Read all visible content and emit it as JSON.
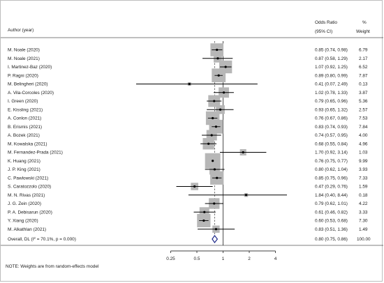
{
  "header": {
    "author_label": "Author (year)",
    "or_label": "Odds Ratio",
    "ci_label": "(95% CI)",
    "pct_label": "%",
    "weight_label": "Weight"
  },
  "note": "NOTE: Weights are from random-effects model",
  "chart_data": {
    "type": "forest",
    "x_scale": "log",
    "x_ticks": [
      "0.25",
      "0.5",
      "1",
      "2",
      "4"
    ],
    "null_line": 1,
    "pooled_line": 0.8,
    "studies": [
      {
        "label": "M. Noale (2020)",
        "or": 0.85,
        "lo": 0.74,
        "hi": 0.98,
        "ci_text": "0.85 (0.74, 0.98)",
        "weight": "6.79"
      },
      {
        "label": "M. Noale (2021)",
        "or": 0.87,
        "lo": 0.58,
        "hi": 1.29,
        "ci_text": "0.87 (0.58, 1.29)",
        "weight": "2.17"
      },
      {
        "label": "I. Martinez-Baz (2020)",
        "or": 1.07,
        "lo": 0.92,
        "hi": 1.25,
        "ci_text": "1.07 (0.92, 1.25)",
        "weight": "6.52"
      },
      {
        "label": "P. Ragni (2020)",
        "or": 0.89,
        "lo": 0.8,
        "hi": 0.99,
        "ci_text": "0.89 (0.80, 0.99)",
        "weight": "7.87"
      },
      {
        "label": "M. Belingheri (2020)",
        "or": 0.41,
        "lo": 0.07,
        "hi": 2.49,
        "ci_text": "0.41 (0.07, 2.49)",
        "weight": "0.13"
      },
      {
        "label": "A. Vila-Corcoles (2020)",
        "or": 1.02,
        "lo": 0.78,
        "hi": 1.33,
        "ci_text": "1.02 (0.78, 1.33)",
        "weight": "3.87"
      },
      {
        "label": "I. Green (2020)",
        "or": 0.79,
        "lo": 0.65,
        "hi": 0.96,
        "ci_text": "0.79 (0.65, 0.96)",
        "weight": "5.36"
      },
      {
        "label": "E. Kissling (2021)",
        "or": 0.93,
        "lo": 0.65,
        "hi": 1.32,
        "ci_text": "0.93 (0.65, 1.32)",
        "weight": "2.57"
      },
      {
        "label": "A. Conlon (2021)",
        "or": 0.76,
        "lo": 0.67,
        "hi": 0.86,
        "ci_text": "0.76 (0.67, 0.86)",
        "weight": "7.53"
      },
      {
        "label": "B. Erismis (2021)",
        "or": 0.83,
        "lo": 0.74,
        "hi": 0.93,
        "ci_text": "0.83 (0.74, 0.93)",
        "weight": "7.84"
      },
      {
        "label": "A. Bozek (2021)",
        "or": 0.74,
        "lo": 0.57,
        "hi": 0.95,
        "ci_text": "0.74 (0.57, 0.95)",
        "weight": "4.00"
      },
      {
        "label": "M. Kowalska (2021)",
        "or": 0.68,
        "lo": 0.55,
        "hi": 0.84,
        "ci_text": "0.68 (0.55, 0.84)",
        "weight": "4.96"
      },
      {
        "label": "M. Fernandez-Prada (2021)",
        "or": 1.7,
        "lo": 0.92,
        "hi": 3.14,
        "ci_text": "1.70 (0.92, 3.14)",
        "weight": "1.03"
      },
      {
        "label": "K. Huang (2021)",
        "or": 0.76,
        "lo": 0.75,
        "hi": 0.77,
        "ci_text": "0.76 (0.75, 0.77)",
        "weight": "9.99"
      },
      {
        "label": "J. P. King (2021)",
        "or": 0.8,
        "lo": 0.62,
        "hi": 1.04,
        "ci_text": "0.80 (0.62, 1.04)",
        "weight": "3.93"
      },
      {
        "label": "C. Pawlowski (2021)",
        "or": 0.85,
        "lo": 0.75,
        "hi": 0.96,
        "ci_text": "0.85 (0.75, 0.96)",
        "weight": "7.33"
      },
      {
        "label": "S. Caratozzolo (2020)",
        "or": 0.47,
        "lo": 0.29,
        "hi": 0.76,
        "ci_text": "0.47 (0.29, 0.76)",
        "weight": "1.59"
      },
      {
        "label": "M. N. Rivas (2021)",
        "or": 1.84,
        "lo": 0.4,
        "hi": 8.44,
        "ci_text": "1.84 (0.40, 8.44)",
        "weight": "0.18"
      },
      {
        "label": "J. G. Zein (2020)",
        "or": 0.79,
        "lo": 0.62,
        "hi": 1.01,
        "ci_text": "0.79 (0.62, 1.01)",
        "weight": "4.22"
      },
      {
        "label": "P. A. Debisarun (2020)",
        "or": 0.61,
        "lo": 0.46,
        "hi": 0.82,
        "ci_text": "0.61 (0.46, 0.82)",
        "weight": "3.33"
      },
      {
        "label": "Y. Xiang (2020)",
        "or": 0.6,
        "lo": 0.53,
        "hi": 0.68,
        "ci_text": "0.60 (0.53, 0.68)",
        "weight": "7.30"
      },
      {
        "label": "M. Alkathlan (2021)",
        "or": 0.83,
        "lo": 0.51,
        "hi": 1.36,
        "ci_text": "0.83 (0.51, 1.36)",
        "weight": "1.49"
      }
    ],
    "overall": {
      "label_prefix": "Overall, DL (I",
      "label_sup": "2",
      "label_suffix": " = 70.1%, p = 0.000)",
      "or": 0.8,
      "lo": 0.75,
      "hi": 0.86,
      "ci_text": "0.80 (0.75, 0.86)",
      "weight": "100.00"
    },
    "colors": {
      "box": "#b7b7b7",
      "line": "#000000",
      "diamond": "#1f2a8a",
      "refline": "#000000",
      "pooled": "#555555"
    }
  }
}
